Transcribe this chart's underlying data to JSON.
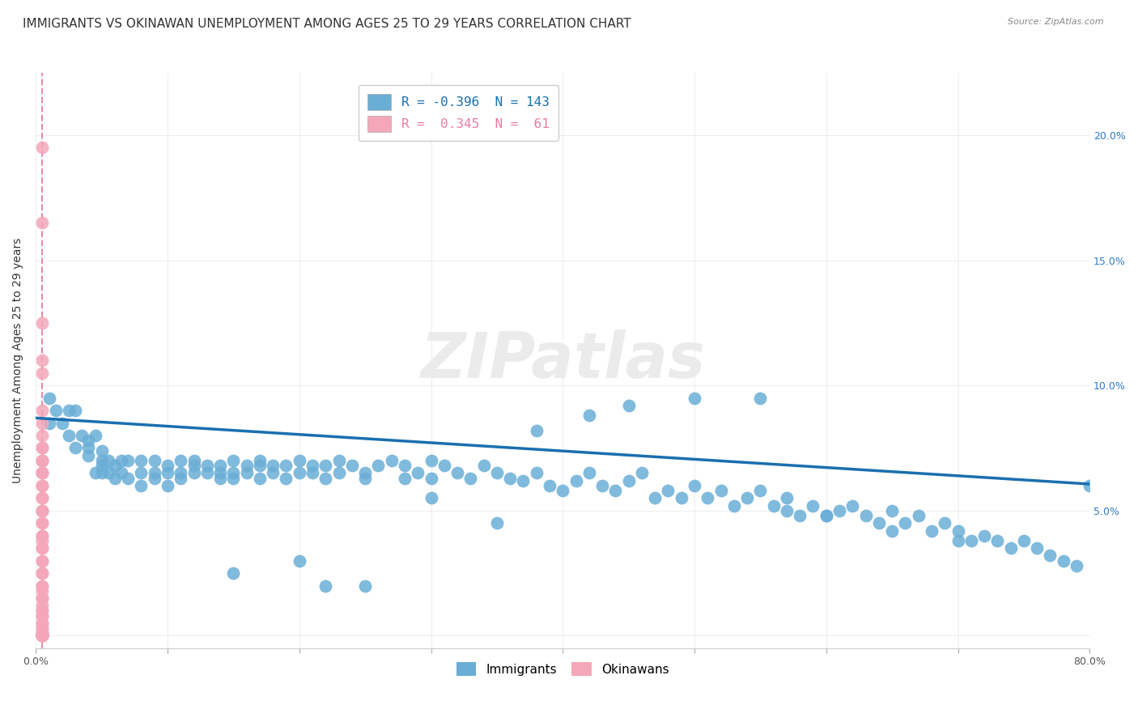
{
  "title": "IMMIGRANTS VS OKINAWAN UNEMPLOYMENT AMONG AGES 25 TO 29 YEARS CORRELATION CHART",
  "source": "Source: ZipAtlas.com",
  "ylabel": "Unemployment Among Ages 25 to 29 years",
  "xlim": [
    0.0,
    0.8
  ],
  "ylim": [
    -0.005,
    0.225
  ],
  "blue_R": -0.396,
  "blue_N": 143,
  "pink_R": 0.345,
  "pink_N": 61,
  "blue_color": "#6aaed6",
  "pink_color": "#f4a7b9",
  "blue_line_color": "#1a6faf",
  "pink_line_color": "#e87da0",
  "watermark": "ZIPatlas",
  "legend_blue_label": "Immigrants",
  "legend_pink_label": "Okinawans",
  "blue_scatter_x": [
    0.01,
    0.01,
    0.015,
    0.02,
    0.025,
    0.025,
    0.03,
    0.03,
    0.035,
    0.04,
    0.04,
    0.04,
    0.045,
    0.045,
    0.05,
    0.05,
    0.05,
    0.05,
    0.055,
    0.055,
    0.06,
    0.06,
    0.065,
    0.065,
    0.07,
    0.07,
    0.08,
    0.08,
    0.08,
    0.09,
    0.09,
    0.09,
    0.1,
    0.1,
    0.1,
    0.11,
    0.11,
    0.11,
    0.12,
    0.12,
    0.12,
    0.13,
    0.13,
    0.14,
    0.14,
    0.14,
    0.15,
    0.15,
    0.15,
    0.16,
    0.16,
    0.17,
    0.17,
    0.17,
    0.18,
    0.18,
    0.19,
    0.19,
    0.2,
    0.2,
    0.21,
    0.21,
    0.22,
    0.22,
    0.23,
    0.23,
    0.24,
    0.25,
    0.25,
    0.26,
    0.27,
    0.28,
    0.28,
    0.29,
    0.3,
    0.3,
    0.31,
    0.32,
    0.33,
    0.34,
    0.35,
    0.36,
    0.37,
    0.38,
    0.39,
    0.4,
    0.41,
    0.42,
    0.43,
    0.44,
    0.45,
    0.46,
    0.47,
    0.48,
    0.49,
    0.5,
    0.51,
    0.52,
    0.53,
    0.54,
    0.55,
    0.56,
    0.57,
    0.57,
    0.58,
    0.59,
    0.6,
    0.61,
    0.62,
    0.63,
    0.64,
    0.65,
    0.66,
    0.67,
    0.68,
    0.69,
    0.7,
    0.71,
    0.72,
    0.73,
    0.74,
    0.75,
    0.76,
    0.77,
    0.78,
    0.79,
    0.8,
    0.55,
    0.5,
    0.45,
    0.42,
    0.38,
    0.35,
    0.15,
    0.2,
    0.22,
    0.25,
    0.3,
    0.6,
    0.65,
    0.7,
    0.75
  ],
  "blue_scatter_y": [
    0.085,
    0.095,
    0.09,
    0.085,
    0.08,
    0.09,
    0.075,
    0.09,
    0.08,
    0.075,
    0.072,
    0.078,
    0.08,
    0.065,
    0.07,
    0.068,
    0.065,
    0.074,
    0.07,
    0.065,
    0.068,
    0.063,
    0.065,
    0.07,
    0.063,
    0.07,
    0.065,
    0.06,
    0.07,
    0.065,
    0.07,
    0.063,
    0.068,
    0.065,
    0.06,
    0.065,
    0.07,
    0.063,
    0.068,
    0.065,
    0.07,
    0.065,
    0.068,
    0.063,
    0.068,
    0.065,
    0.065,
    0.063,
    0.07,
    0.068,
    0.065,
    0.063,
    0.068,
    0.07,
    0.065,
    0.068,
    0.063,
    0.068,
    0.065,
    0.07,
    0.068,
    0.065,
    0.063,
    0.068,
    0.07,
    0.065,
    0.068,
    0.065,
    0.063,
    0.068,
    0.07,
    0.063,
    0.068,
    0.065,
    0.063,
    0.07,
    0.068,
    0.065,
    0.063,
    0.068,
    0.065,
    0.063,
    0.062,
    0.065,
    0.06,
    0.058,
    0.062,
    0.065,
    0.06,
    0.058,
    0.062,
    0.065,
    0.055,
    0.058,
    0.055,
    0.06,
    0.055,
    0.058,
    0.052,
    0.055,
    0.058,
    0.052,
    0.05,
    0.055,
    0.048,
    0.052,
    0.048,
    0.05,
    0.052,
    0.048,
    0.045,
    0.05,
    0.045,
    0.048,
    0.042,
    0.045,
    0.042,
    0.038,
    0.04,
    0.038,
    0.035,
    0.038,
    0.035,
    0.032,
    0.03,
    0.028,
    0.06,
    0.095,
    0.095,
    0.092,
    0.088,
    0.082,
    0.045,
    0.025,
    0.03,
    0.02,
    0.02,
    0.055,
    0.048,
    0.042,
    0.038
  ],
  "pink_scatter_x": [
    0.005,
    0.005,
    0.005,
    0.005,
    0.005,
    0.005,
    0.005,
    0.005,
    0.005,
    0.005,
    0.005,
    0.005,
    0.005,
    0.005,
    0.005,
    0.005,
    0.005,
    0.005,
    0.005,
    0.005,
    0.005,
    0.005,
    0.005,
    0.005,
    0.005,
    0.005,
    0.005,
    0.005,
    0.005,
    0.005,
    0.005,
    0.005,
    0.005,
    0.005,
    0.005,
    0.005,
    0.005,
    0.005,
    0.005,
    0.005,
    0.005,
    0.005,
    0.005,
    0.005,
    0.005,
    0.005,
    0.005,
    0.005,
    0.005,
    0.005,
    0.005,
    0.005,
    0.005,
    0.005,
    0.005,
    0.005,
    0.005,
    0.005,
    0.005,
    0.005,
    0.005
  ],
  "pink_scatter_y": [
    0.195,
    0.165,
    0.125,
    0.11,
    0.105,
    0.09,
    0.08,
    0.085,
    0.075,
    0.075,
    0.07,
    0.07,
    0.07,
    0.065,
    0.065,
    0.065,
    0.06,
    0.06,
    0.055,
    0.055,
    0.05,
    0.05,
    0.05,
    0.045,
    0.045,
    0.04,
    0.04,
    0.038,
    0.035,
    0.035,
    0.03,
    0.03,
    0.025,
    0.025,
    0.02,
    0.02,
    0.018,
    0.015,
    0.015,
    0.012,
    0.01,
    0.01,
    0.008,
    0.008,
    0.005,
    0.005,
    0.003,
    0.003,
    0.001,
    0.001,
    0.001,
    0.0,
    0.0,
    0.0,
    0.0,
    0.0,
    0.0,
    0.0,
    0.0,
    0.0,
    0.0
  ],
  "blue_line_y_intercept": 0.087,
  "blue_line_slope": -0.033,
  "pink_line_x": 0.005,
  "background_color": "#ffffff",
  "title_fontsize": 11,
  "axis_fontsize": 10,
  "tick_fontsize": 9
}
